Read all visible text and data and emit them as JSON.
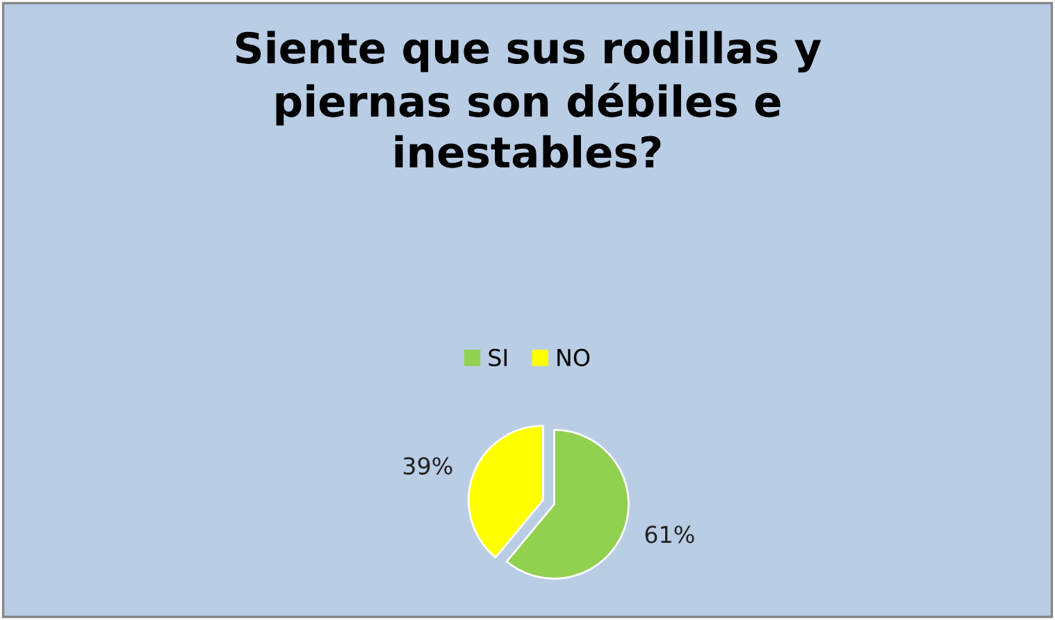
{
  "chart_data": {
    "type": "pie",
    "title": "Siente que sus rodillas y\npiernas son débiles e\ninestables?",
    "categories": [
      "SI",
      "NO"
    ],
    "values": [
      61,
      39
    ],
    "colors": [
      "#92d050",
      "#ffff00"
    ],
    "value_labels": [
      "61%",
      "39%"
    ],
    "legend": "top"
  }
}
